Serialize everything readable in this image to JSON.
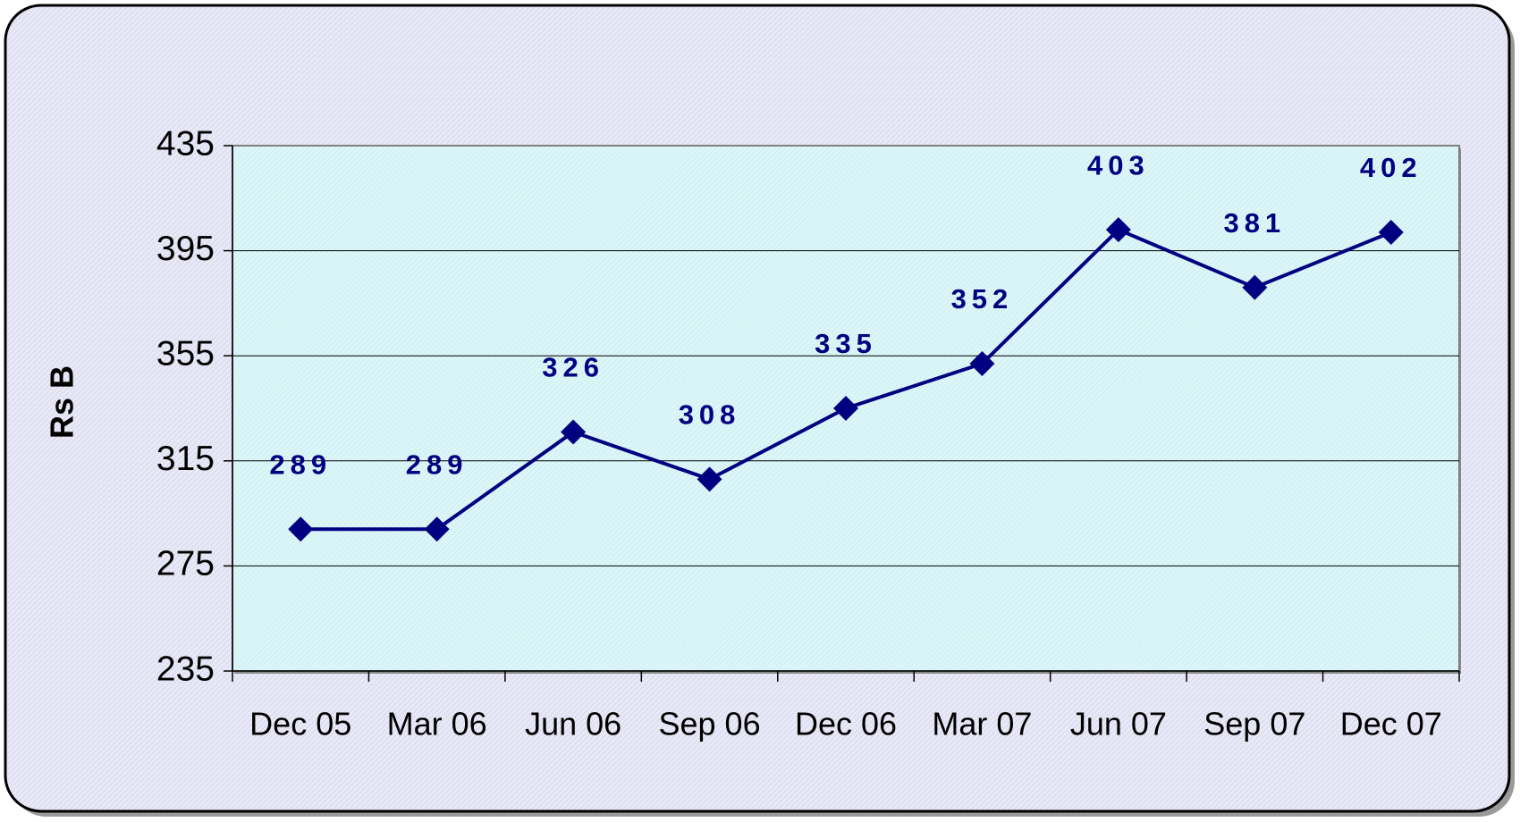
{
  "chart_data": {
    "type": "line",
    "y_label": "Rs B",
    "categories": [
      "Dec 05",
      "Mar 06",
      "Jun 06",
      "Sep 06",
      "Dec 06",
      "Mar 07",
      "Jun 07",
      "Sep 07",
      "Dec 07"
    ],
    "series": [
      {
        "name": "Rs B",
        "color": "#000080",
        "values": [
          289,
          289,
          326,
          308,
          335,
          352,
          403,
          381,
          402
        ]
      }
    ],
    "ylim": [
      235,
      435
    ],
    "yticks": [
      235,
      275,
      315,
      355,
      395,
      435
    ],
    "grid": true
  }
}
